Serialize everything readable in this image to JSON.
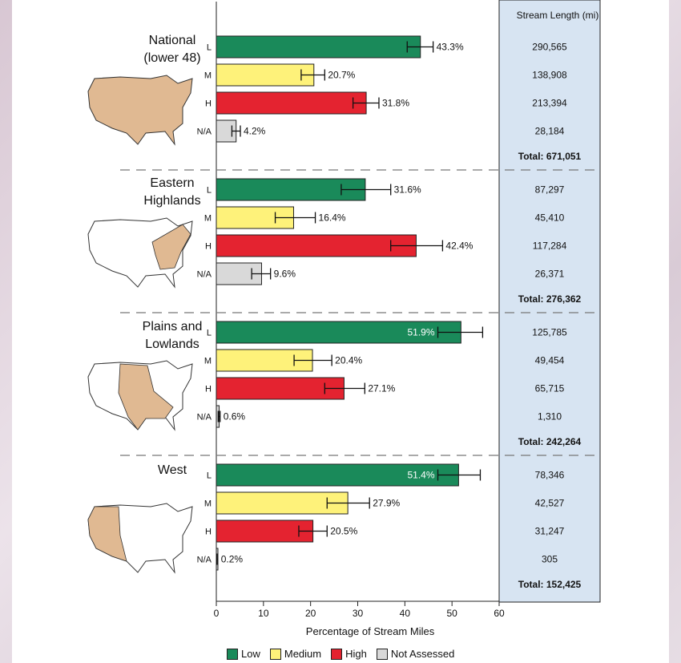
{
  "chart_data": {
    "type": "bar",
    "orientation": "horizontal",
    "xlabel": "Percentage of Stream Miles",
    "xlim": [
      0,
      60
    ],
    "xticks": [
      0,
      10,
      20,
      30,
      40,
      50,
      60
    ],
    "table_header": "Stream Length (mi)",
    "categories": [
      "L",
      "M",
      "H",
      "N/A"
    ],
    "legend": [
      {
        "label": "Low",
        "color": "#1a8a5a"
      },
      {
        "label": "Medium",
        "color": "#fef27a"
      },
      {
        "label": "High",
        "color": "#e42330"
      },
      {
        "label": "Not Assessed",
        "color": "#d9d9d9"
      }
    ],
    "regions": [
      {
        "name": "National",
        "name_line2": "(lower 48)",
        "bars": [
          {
            "cat": "L",
            "value": 43.3,
            "label": "43.3%",
            "err": [
              40.5,
              46.0
            ],
            "miles": "290,565"
          },
          {
            "cat": "M",
            "value": 20.7,
            "label": "20.7%",
            "err": [
              18.0,
              23.0
            ],
            "miles": "138,908"
          },
          {
            "cat": "H",
            "value": 31.8,
            "label": "31.8%",
            "err": [
              29.0,
              34.5
            ],
            "miles": "213,394"
          },
          {
            "cat": "N/A",
            "value": 4.2,
            "label": "4.2%",
            "err": [
              3.3,
              5.1
            ],
            "miles": "28,184"
          }
        ],
        "total": "Total: 671,051"
      },
      {
        "name": "Eastern",
        "name_line2": "Highlands",
        "bars": [
          {
            "cat": "L",
            "value": 31.6,
            "label": "31.6%",
            "err": [
              26.5,
              37.0
            ],
            "miles": "87,297"
          },
          {
            "cat": "M",
            "value": 16.4,
            "label": "16.4%",
            "err": [
              12.5,
              21.0
            ],
            "miles": "45,410"
          },
          {
            "cat": "H",
            "value": 42.4,
            "label": "42.4%",
            "err": [
              37.0,
              48.0
            ],
            "miles": "117,284"
          },
          {
            "cat": "N/A",
            "value": 9.6,
            "label": "9.6%",
            "err": [
              7.5,
              11.5
            ],
            "miles": "26,371"
          }
        ],
        "total": "Total: 276,362"
      },
      {
        "name": "Plains and",
        "name_line2": "Lowlands",
        "bars": [
          {
            "cat": "L",
            "value": 51.9,
            "label": "51.9%",
            "err": [
              47.0,
              56.5
            ],
            "miles": "125,785"
          },
          {
            "cat": "M",
            "value": 20.4,
            "label": "20.4%",
            "err": [
              16.5,
              24.5
            ],
            "miles": "49,454"
          },
          {
            "cat": "H",
            "value": 27.1,
            "label": "27.1%",
            "err": [
              23.0,
              31.5
            ],
            "miles": "65,715"
          },
          {
            "cat": "N/A",
            "value": 0.6,
            "label": "0.6%",
            "err": [
              0.4,
              0.8
            ],
            "miles": "1,310"
          }
        ],
        "total": "Total: 242,264"
      },
      {
        "name": "West",
        "name_line2": "",
        "bars": [
          {
            "cat": "L",
            "value": 51.4,
            "label": "51.4%",
            "err": [
              47.0,
              56.0
            ],
            "miles": "78,346"
          },
          {
            "cat": "M",
            "value": 27.9,
            "label": "27.9%",
            "err": [
              23.5,
              32.5
            ],
            "miles": "42,527"
          },
          {
            "cat": "H",
            "value": 20.5,
            "label": "20.5%",
            "err": [
              17.5,
              23.5
            ],
            "miles": "31,247"
          },
          {
            "cat": "N/A",
            "value": 0.2,
            "label": "0.2%",
            "err": [
              0.1,
              0.3
            ],
            "miles": "305"
          }
        ],
        "total": "Total: 152,425"
      }
    ]
  },
  "map_fill": "#e0b992",
  "table_fill": "#d7e4f2"
}
